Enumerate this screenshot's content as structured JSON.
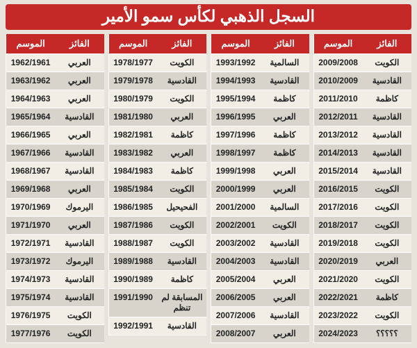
{
  "title": "السجل الذهبي لكأس سمو الأمير",
  "colors": {
    "header_bg": "#c62828",
    "header_fg": "#ffffff",
    "page_bg": "#e8e4dc",
    "row_odd_bg": "#f2eee6",
    "row_even_bg": "#d8d4cc",
    "cell_fg": "#222222",
    "border": "#ffffff"
  },
  "column_headers": {
    "season": "الموسم",
    "winner": "الفائز"
  },
  "typography": {
    "title_fontsize": 23,
    "header_fontsize": 13,
    "cell_fontsize": 12
  },
  "panels": [
    [
      {
        "season": "1962/1961",
        "winner": "العربي"
      },
      {
        "season": "1963/1962",
        "winner": "العربي"
      },
      {
        "season": "1964/1963",
        "winner": "العربي"
      },
      {
        "season": "1965/1964",
        "winner": "القادسية"
      },
      {
        "season": "1966/1965",
        "winner": "العربي"
      },
      {
        "season": "1967/1966",
        "winner": "القادسية"
      },
      {
        "season": "1968/1967",
        "winner": "القادسية"
      },
      {
        "season": "1969/1968",
        "winner": "العربي"
      },
      {
        "season": "1970/1969",
        "winner": "اليرموك"
      },
      {
        "season": "1971/1970",
        "winner": "العربي"
      },
      {
        "season": "1972/1971",
        "winner": "القادسية"
      },
      {
        "season": "1973/1972",
        "winner": "اليرموك"
      },
      {
        "season": "1974/1973",
        "winner": "القادسية"
      },
      {
        "season": "1975/1974",
        "winner": "القادسية"
      },
      {
        "season": "1976/1975",
        "winner": "الكويت"
      },
      {
        "season": "1977/1976",
        "winner": "الكويت"
      }
    ],
    [
      {
        "season": "1978/1977",
        "winner": "الكويت"
      },
      {
        "season": "1979/1978",
        "winner": "القادسية"
      },
      {
        "season": "1980/1979",
        "winner": "الكويت"
      },
      {
        "season": "1981/1980",
        "winner": "العربي"
      },
      {
        "season": "1982/1981",
        "winner": "كاظمة"
      },
      {
        "season": "1983/1982",
        "winner": "العربي"
      },
      {
        "season": "1984/1983",
        "winner": "كاظمة"
      },
      {
        "season": "1985/1984",
        "winner": "الكويت"
      },
      {
        "season": "1986/1985",
        "winner": "الفحيحيل"
      },
      {
        "season": "1987/1986",
        "winner": "الكويت"
      },
      {
        "season": "1988/1987",
        "winner": "الكويت"
      },
      {
        "season": "1989/1988",
        "winner": "القادسية"
      },
      {
        "season": "1990/1989",
        "winner": "كاظمة"
      },
      {
        "season": "1991/1990",
        "winner": "المسابقة لم تنظم"
      },
      {
        "season": "1992/1991",
        "winner": "القادسية"
      }
    ],
    [
      {
        "season": "1993/1992",
        "winner": "السالمية"
      },
      {
        "season": "1994/1993",
        "winner": "القادسية"
      },
      {
        "season": "1995/1994",
        "winner": "كاظمة"
      },
      {
        "season": "1996/1995",
        "winner": "العربي"
      },
      {
        "season": "1997/1996",
        "winner": "كاظمة"
      },
      {
        "season": "1998/1997",
        "winner": "كاظمة"
      },
      {
        "season": "1999/1998",
        "winner": "العربي"
      },
      {
        "season": "2000/1999",
        "winner": "العربي"
      },
      {
        "season": "2001/2000",
        "winner": "السالمية"
      },
      {
        "season": "2002/2001",
        "winner": "الكويت"
      },
      {
        "season": "2003/2002",
        "winner": "القادسية"
      },
      {
        "season": "2004/2003",
        "winner": "القادسية"
      },
      {
        "season": "2005/2004",
        "winner": "العربي"
      },
      {
        "season": "2006/2005",
        "winner": "العربي"
      },
      {
        "season": "2007/2006",
        "winner": "القادسية"
      },
      {
        "season": "2008/2007",
        "winner": "العربي"
      }
    ],
    [
      {
        "season": "2009/2008",
        "winner": "الكويت"
      },
      {
        "season": "2010/2009",
        "winner": "القادسية"
      },
      {
        "season": "2011/2010",
        "winner": "كاظمة"
      },
      {
        "season": "2012/2011",
        "winner": "القادسية"
      },
      {
        "season": "2013/2012",
        "winner": "القادسية"
      },
      {
        "season": "2014/2013",
        "winner": "القادسية"
      },
      {
        "season": "2015/2014",
        "winner": "القادسية"
      },
      {
        "season": "2016/2015",
        "winner": "الكويت"
      },
      {
        "season": "2017/2016",
        "winner": "الكويت"
      },
      {
        "season": "2018/2017",
        "winner": "الكويت"
      },
      {
        "season": "2019/2018",
        "winner": "الكويت"
      },
      {
        "season": "2020/2019",
        "winner": "العربي"
      },
      {
        "season": "2021/2020",
        "winner": "الكويت"
      },
      {
        "season": "2022/2021",
        "winner": "كاظمة"
      },
      {
        "season": "2023/2022",
        "winner": "الكويت"
      },
      {
        "season": "2024/2023",
        "winner": "؟؟؟؟؟"
      }
    ]
  ]
}
